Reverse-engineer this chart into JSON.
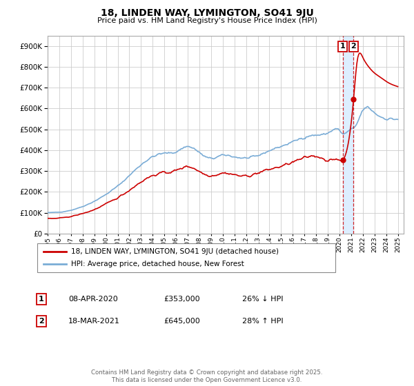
{
  "title": "18, LINDEN WAY, LYMINGTON, SO41 9JU",
  "subtitle": "Price paid vs. HM Land Registry's House Price Index (HPI)",
  "legend_label_red": "18, LINDEN WAY, LYMINGTON, SO41 9JU (detached house)",
  "legend_label_blue": "HPI: Average price, detached house, New Forest",
  "transaction1_date": "08-APR-2020",
  "transaction1_price": "£353,000",
  "transaction1_hpi": "26% ↓ HPI",
  "transaction2_date": "18-MAR-2021",
  "transaction2_price": "£645,000",
  "transaction2_hpi": "28% ↑ HPI",
  "footnote": "Contains HM Land Registry data © Crown copyright and database right 2025.\nThis data is licensed under the Open Government Licence v3.0.",
  "xlim_start": 1995.0,
  "xlim_end": 2025.5,
  "ylim_min": 0,
  "ylim_max": 950000,
  "transaction1_x": 2020.27,
  "transaction2_x": 2021.21,
  "red_color": "#cc0000",
  "blue_color": "#7aacd6",
  "vline_color": "#cc0000",
  "shade_color": "#ddeeff",
  "background_color": "#ffffff",
  "grid_color": "#cccccc"
}
